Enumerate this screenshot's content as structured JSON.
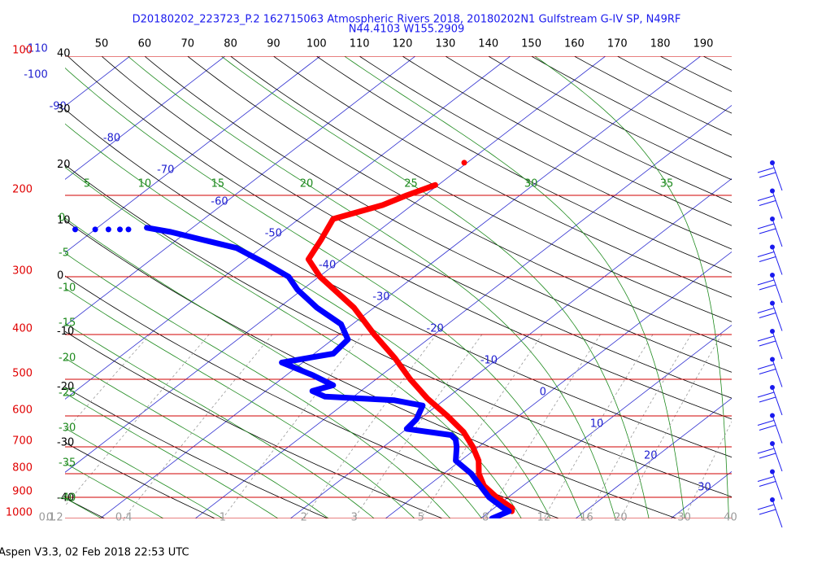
{
  "chart_data": {
    "type": "skew-t",
    "title": "D20180202_223723_P.2 162715063 Atmospheric Rivers 2018, 20180202N1 Gulfstream G-IV SP, N49RF",
    "subtitle": "N44.4103 W155.2909",
    "footer": "Aspen V3.3, 02 Feb 2018  22:53 UTC",
    "ylim": [
      1000,
      100
    ],
    "log_scale": true,
    "xlim": [
      -33.7,
      36.4
    ],
    "yticks": [
      100,
      200,
      300,
      400,
      500,
      600,
      700,
      800,
      900,
      1000
    ],
    "isotherm_ticks": [
      -110,
      -100,
      -90,
      -80,
      -70,
      -60,
      -50,
      -40,
      -30,
      -20,
      -10,
      0,
      10,
      20,
      30
    ],
    "dry_adiabat_ticks": [
      50,
      60,
      70,
      80,
      90,
      100,
      110,
      120,
      130,
      140,
      150,
      160,
      170,
      180,
      190
    ],
    "dry_adiabat_left_ticks": [
      40,
      30,
      20,
      10,
      0,
      -10,
      -20,
      -30,
      -40
    ],
    "moist_adiabat_ticks": [
      5,
      10,
      15,
      20,
      25,
      30,
      35
    ],
    "moist_adiabat_left_ticks": [
      0,
      -5,
      -10,
      -15,
      -20,
      -25,
      -30,
      -35,
      -40
    ],
    "mixing_ratio_ticks": [
      0.1,
      0.2,
      0.4,
      1,
      2,
      3,
      5,
      8,
      12,
      16,
      20,
      30,
      40
    ],
    "series": [
      {
        "color": "#ff0000",
        "pressure": [
          965,
          950,
          900,
          850,
          800,
          750,
          700,
          650,
          600,
          550,
          500,
          450,
          400,
          350,
          300,
          275,
          250,
          225,
          210,
          200,
          190,
          null,
          170
        ],
        "values": [
          12.3,
          11.9,
          8.8,
          5.9,
          3.7,
          1.9,
          -0.6,
          -3.6,
          -7.5,
          -12.0,
          -16.4,
          -20.9,
          -26.3,
          -32.1,
          -39.9,
          -43.5,
          -44.8,
          -46.4,
          -43.1,
          -41.9,
          -40.3,
          null,
          -40.3
        ]
      },
      {
        "color": "#0000ff",
        "pressure": [
          1000,
          965,
          950,
          900,
          850,
          800,
          750,
          700,
          675,
          660,
          640,
          610,
          570,
          555,
          545,
          530,
          515,
          490,
          460,
          440,
          410,
          380,
          350,
          320,
          300,
          280,
          260,
          250,
          240,
          235,
          null,
          237,
          null,
          237,
          null,
          237,
          null,
          237,
          null,
          237
        ],
        "values": [
          11.2,
          12.0,
          11.0,
          8.0,
          5.5,
          2.9,
          -0.5,
          -2.3,
          -3.4,
          -4.5,
          -10.0,
          -10.3,
          -11.5,
          -15.2,
          -23.0,
          -25.1,
          -23.7,
          -27.2,
          -32.2,
          -28.0,
          -28.4,
          -31.2,
          -36.0,
          -40.5,
          -43.2,
          -47.6,
          -52.6,
          -57.1,
          -61.7,
          -64.8,
          null,
          -66.5,
          null,
          -67.4,
          null,
          -68.6,
          null,
          -70.0,
          null,
          -72.1
        ]
      }
    ]
  }
}
